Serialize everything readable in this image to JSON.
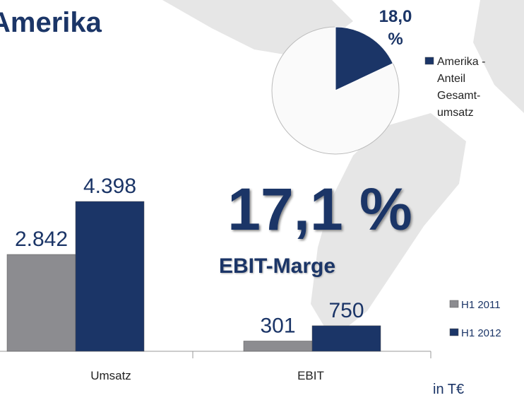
{
  "title": "Amerika",
  "chart_data": [
    {
      "type": "bar",
      "categories": [
        "Umsatz",
        "EBIT"
      ],
      "series": [
        {
          "name": "H1 2011",
          "color": "#8c8c90",
          "values": [
            2842,
            301
          ],
          "value_labels": [
            "2.842",
            "301"
          ]
        },
        {
          "name": "H1 2012",
          "color": "#1b3567",
          "values": [
            4398,
            750
          ],
          "value_labels": [
            "4.398",
            "750"
          ]
        }
      ],
      "unit_label": "in T€"
    },
    {
      "type": "pie",
      "categories": [
        "Amerika - Anteil Gesamt-umsatz"
      ],
      "values": [
        18
      ],
      "value_labels": [
        "18,0 %"
      ],
      "color": "#1b3567"
    }
  ],
  "kpi": {
    "value_label": "17,1 %",
    "label": "EBIT-Marge"
  }
}
